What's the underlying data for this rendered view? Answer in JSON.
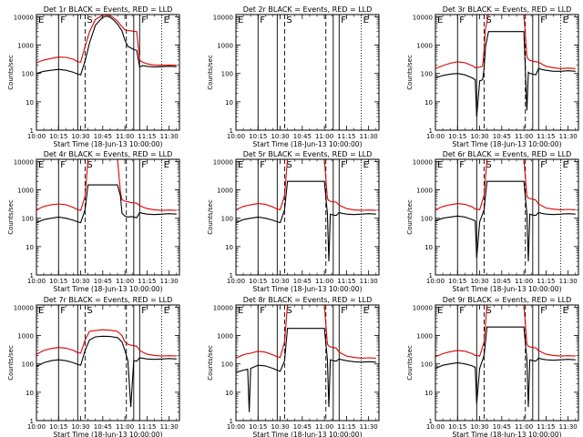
{
  "chart_data": {
    "type": "line",
    "layout": "3x3 grid of log-scale time series panels",
    "common": {
      "xlabel": "Start Time (18-Jun-13 10:00:00)",
      "ylabel": "Counts/sec",
      "x_ticks": [
        "10:00",
        "10:15",
        "10:30",
        "10:45",
        "11:00",
        "11:15",
        "11:30"
      ],
      "x_range_min": [
        0,
        97
      ],
      "y_ticks": [
        "1",
        "10",
        "100",
        "1000",
        "10000"
      ],
      "y_range": [
        1,
        12000
      ],
      "y_scale": "log",
      "series": [
        {
          "name": "Events",
          "color": "#000000"
        },
        {
          "name": "LLD",
          "color": "#e00000"
        }
      ]
    },
    "panels": [
      {
        "title": "Det 1r BLACK = Events, RED = LLD",
        "markers": [
          {
            "label": "E",
            "t": 0,
            "style": "solid"
          },
          {
            "label": "F",
            "t": 15,
            "style": "solid"
          },
          {
            "label": "",
            "t": 28,
            "style": "solid"
          },
          {
            "label": "S",
            "t": 33,
            "style": "dashed"
          },
          {
            "label": "",
            "t": 61,
            "style": "dashed"
          },
          {
            "label": "",
            "t": 66,
            "style": "solid"
          },
          {
            "label": "F",
            "t": 70,
            "style": "solid"
          },
          {
            "label": "E",
            "t": 85,
            "style": "dotted"
          }
        ],
        "t": [
          0,
          5,
          10,
          15,
          20,
          25,
          28,
          30,
          33,
          36,
          40,
          45,
          48,
          50,
          52,
          55,
          58,
          60,
          62,
          64,
          66,
          68,
          70,
          72,
          75,
          80,
          85,
          90,
          95
        ],
        "events": [
          100,
          120,
          130,
          140,
          130,
          110,
          95,
          90,
          280,
          1200,
          5000,
          9800,
          10500,
          9600,
          8000,
          5500,
          3200,
          1500,
          900,
          800,
          700,
          650,
          170,
          190,
          180,
          170,
          175,
          180,
          175
        ],
        "lld": [
          240,
          300,
          340,
          380,
          370,
          320,
          260,
          250,
          900,
          3000,
          8000,
          11500,
          11800,
          11000,
          9500,
          7000,
          4500,
          3500,
          3300,
          3200,
          3100,
          3000,
          300,
          250,
          220,
          200,
          195,
          200,
          195
        ]
      },
      {
        "title": "Det 2r BLACK = Events, RED = LLD",
        "markers": [
          {
            "label": "E",
            "t": 0,
            "style": "solid"
          },
          {
            "label": "F",
            "t": 15,
            "style": "solid"
          },
          {
            "label": "",
            "t": 28,
            "style": "solid"
          },
          {
            "label": "S",
            "t": 33,
            "style": "dashed"
          },
          {
            "label": "",
            "t": 61,
            "style": "dashed"
          },
          {
            "label": "",
            "t": 66,
            "style": "solid"
          },
          {
            "label": "F",
            "t": 70,
            "style": "solid"
          },
          {
            "label": "E",
            "t": 85,
            "style": "dotted"
          }
        ],
        "t": [],
        "events": [],
        "lld": []
      },
      {
        "title": "Det 3r BLACK = Events, RED = LLD",
        "markers": [
          {
            "label": "E",
            "t": 0,
            "style": "solid"
          },
          {
            "label": "F",
            "t": 15,
            "style": "solid"
          },
          {
            "label": "",
            "t": 28,
            "style": "solid"
          },
          {
            "label": "S",
            "t": 33,
            "style": "dashed"
          },
          {
            "label": "",
            "t": 61,
            "style": "dashed"
          },
          {
            "label": "",
            "t": 66,
            "style": "solid"
          },
          {
            "label": "F",
            "t": 70,
            "style": "solid"
          },
          {
            "label": "E",
            "t": 85,
            "style": "dotted"
          }
        ],
        "t": [
          0,
          5,
          10,
          15,
          20,
          25,
          27,
          28,
          30,
          32,
          33,
          34,
          36,
          60,
          62,
          63,
          64,
          66,
          68,
          70,
          72,
          75,
          80,
          85,
          90,
          95
        ],
        "events": [
          70,
          85,
          95,
          100,
          90,
          70,
          60,
          3,
          55,
          60,
          150,
          900,
          3000,
          3000,
          5,
          110,
          100,
          95,
          90,
          150,
          140,
          130,
          120,
          120,
          125,
          120
        ],
        "lld": [
          150,
          190,
          230,
          260,
          240,
          190,
          160,
          160,
          170,
          180,
          700,
          4000,
          14000,
          14000,
          400,
          320,
          290,
          270,
          260,
          250,
          220,
          180,
          160,
          150,
          155,
          150
        ]
      },
      {
        "title": "Det 4r BLACK = Events, RED = LLD",
        "markers": [
          {
            "label": "E",
            "t": 0,
            "style": "solid"
          },
          {
            "label": "F",
            "t": 15,
            "style": "solid"
          },
          {
            "label": "",
            "t": 28,
            "style": "solid"
          },
          {
            "label": "S",
            "t": 33,
            "style": "dashed"
          },
          {
            "label": "",
            "t": 61,
            "style": "dashed"
          },
          {
            "label": "",
            "t": 66,
            "style": "solid"
          },
          {
            "label": "F",
            "t": 70,
            "style": "solid"
          },
          {
            "label": "E",
            "t": 85,
            "style": "dotted"
          }
        ],
        "t": [
          0,
          5,
          10,
          15,
          20,
          25,
          28,
          30,
          33,
          35,
          55,
          57,
          58,
          60,
          62,
          64,
          66,
          68,
          70,
          72,
          75,
          80,
          85,
          90,
          95
        ],
        "events": [
          70,
          90,
          100,
          110,
          100,
          85,
          75,
          70,
          200,
          1500,
          1500,
          600,
          150,
          120,
          110,
          115,
          110,
          105,
          160,
          150,
          140,
          135,
          140,
          145,
          140
        ],
        "lld": [
          200,
          260,
          300,
          320,
          300,
          240,
          200,
          190,
          600,
          14000,
          14000,
          800,
          450,
          400,
          380,
          360,
          350,
          340,
          280,
          250,
          220,
          200,
          190,
          195,
          190
        ]
      },
      {
        "title": "Det 5r BLACK = Events, RED = LLD",
        "markers": [
          {
            "label": "E",
            "t": 0,
            "style": "solid"
          },
          {
            "label": "F",
            "t": 15,
            "style": "solid"
          },
          {
            "label": "",
            "t": 28,
            "style": "solid"
          },
          {
            "label": "S",
            "t": 33,
            "style": "dashed"
          },
          {
            "label": "",
            "t": 61,
            "style": "dashed"
          },
          {
            "label": "",
            "t": 66,
            "style": "solid"
          },
          {
            "label": "F",
            "t": 70,
            "style": "solid"
          },
          {
            "label": "E",
            "t": 85,
            "style": "dotted"
          }
        ],
        "t": [
          0,
          5,
          10,
          15,
          20,
          25,
          28,
          30,
          33,
          35,
          60,
          62,
          63,
          64,
          66,
          68,
          70,
          72,
          75,
          80,
          85,
          90,
          95
        ],
        "events": [
          70,
          90,
          100,
          110,
          100,
          85,
          75,
          70,
          200,
          2000,
          2000,
          150,
          3,
          140,
          130,
          125,
          160,
          150,
          140,
          135,
          140,
          145,
          140
        ],
        "lld": [
          200,
          260,
          300,
          330,
          310,
          250,
          210,
          200,
          650,
          14000,
          14000,
          500,
          420,
          400,
          380,
          370,
          290,
          260,
          220,
          200,
          190,
          195,
          190
        ]
      },
      {
        "title": "Det 6r BLACK = Events, RED = LLD",
        "markers": [
          {
            "label": "E",
            "t": 0,
            "style": "solid"
          },
          {
            "label": "F",
            "t": 15,
            "style": "solid"
          },
          {
            "label": "",
            "t": 28,
            "style": "solid"
          },
          {
            "label": "S",
            "t": 33,
            "style": "dashed"
          },
          {
            "label": "",
            "t": 61,
            "style": "dashed"
          },
          {
            "label": "",
            "t": 66,
            "style": "solid"
          },
          {
            "label": "F",
            "t": 70,
            "style": "solid"
          },
          {
            "label": "E",
            "t": 85,
            "style": "dotted"
          }
        ],
        "t": [
          0,
          5,
          10,
          15,
          20,
          25,
          27,
          28,
          30,
          33,
          35,
          60,
          62,
          63,
          64,
          66,
          68,
          70,
          72,
          75,
          80,
          85,
          90,
          95
        ],
        "events": [
          80,
          100,
          110,
          120,
          110,
          90,
          80,
          4,
          75,
          200,
          2000,
          2000,
          150,
          3,
          140,
          130,
          125,
          160,
          150,
          140,
          135,
          140,
          145,
          140
        ],
        "lld": [
          200,
          260,
          300,
          330,
          310,
          250,
          210,
          210,
          200,
          650,
          14000,
          14000,
          600,
          520,
          500,
          470,
          440,
          320,
          280,
          230,
          210,
          200,
          205,
          200
        ]
      },
      {
        "title": "Det 7r BLACK = Events, RED = LLD",
        "markers": [
          {
            "label": "E",
            "t": 0,
            "style": "solid"
          },
          {
            "label": "F",
            "t": 15,
            "style": "solid"
          },
          {
            "label": "",
            "t": 28,
            "style": "solid"
          },
          {
            "label": "S",
            "t": 33,
            "style": "dashed"
          },
          {
            "label": "",
            "t": 61,
            "style": "dashed"
          },
          {
            "label": "",
            "t": 66,
            "style": "solid"
          },
          {
            "label": "F",
            "t": 70,
            "style": "solid"
          },
          {
            "label": "E",
            "t": 85,
            "style": "dotted"
          }
        ],
        "t": [
          0,
          5,
          10,
          15,
          20,
          25,
          28,
          30,
          33,
          36,
          40,
          45,
          50,
          55,
          58,
          60,
          62,
          64,
          66,
          68,
          70,
          72,
          75,
          80,
          85,
          90,
          95
        ],
        "events": [
          80,
          110,
          130,
          140,
          130,
          110,
          95,
          90,
          300,
          700,
          900,
          950,
          930,
          850,
          600,
          300,
          130,
          3,
          130,
          125,
          165,
          160,
          150,
          145,
          150,
          155,
          150
        ],
        "lld": [
          220,
          300,
          350,
          380,
          360,
          300,
          250,
          240,
          700,
          1400,
          1500,
          1600,
          1550,
          1400,
          1000,
          600,
          500,
          460,
          440,
          420,
          300,
          260,
          220,
          200,
          190,
          195,
          190
        ]
      },
      {
        "title": "Det 8r BLACK = Events, RED = LLD",
        "markers": [
          {
            "label": "E",
            "t": 0,
            "style": "solid"
          },
          {
            "label": "F",
            "t": 15,
            "style": "solid"
          },
          {
            "label": "",
            "t": 28,
            "style": "solid"
          },
          {
            "label": "S",
            "t": 33,
            "style": "dashed"
          },
          {
            "label": "",
            "t": 61,
            "style": "dashed"
          },
          {
            "label": "",
            "t": 66,
            "style": "solid"
          },
          {
            "label": "F",
            "t": 70,
            "style": "solid"
          },
          {
            "label": "E",
            "t": 85,
            "style": "dotted"
          }
        ],
        "t": [
          0,
          5,
          8,
          9,
          10,
          15,
          20,
          25,
          28,
          30,
          33,
          35,
          60,
          62,
          63,
          64,
          66,
          68,
          70,
          72,
          75,
          80,
          85,
          90,
          95
        ],
        "events": [
          50,
          60,
          65,
          2,
          70,
          90,
          85,
          70,
          60,
          55,
          130,
          1800,
          1800,
          150,
          3,
          140,
          130,
          125,
          150,
          140,
          130,
          120,
          115,
          120,
          115
        ],
        "lld": [
          160,
          210,
          230,
          230,
          240,
          280,
          260,
          210,
          180,
          170,
          600,
          14000,
          14000,
          500,
          430,
          400,
          380,
          360,
          260,
          230,
          190,
          170,
          160,
          165,
          160
        ]
      },
      {
        "title": "Det 9r BLACK = Events, RED = LLD",
        "markers": [
          {
            "label": "E",
            "t": 0,
            "style": "solid"
          },
          {
            "label": "F",
            "t": 15,
            "style": "solid"
          },
          {
            "label": "",
            "t": 28,
            "style": "solid"
          },
          {
            "label": "S",
            "t": 33,
            "style": "dashed"
          },
          {
            "label": "",
            "t": 61,
            "style": "dashed"
          },
          {
            "label": "",
            "t": 66,
            "style": "solid"
          },
          {
            "label": "F",
            "t": 70,
            "style": "solid"
          },
          {
            "label": "E",
            "t": 85,
            "style": "dotted"
          }
        ],
        "t": [
          0,
          5,
          10,
          15,
          20,
          25,
          27,
          28,
          30,
          33,
          35,
          60,
          62,
          63,
          64,
          66,
          68,
          70,
          72,
          75,
          80,
          85,
          90,
          95
        ],
        "events": [
          70,
          90,
          100,
          110,
          100,
          85,
          75,
          4,
          70,
          200,
          2000,
          2000,
          150,
          3,
          140,
          130,
          125,
          160,
          150,
          140,
          135,
          140,
          145,
          140
        ],
        "lld": [
          180,
          230,
          270,
          300,
          280,
          230,
          200,
          200,
          190,
          600,
          14000,
          14000,
          500,
          420,
          400,
          380,
          370,
          290,
          260,
          220,
          200,
          190,
          195,
          190
        ]
      }
    ]
  }
}
